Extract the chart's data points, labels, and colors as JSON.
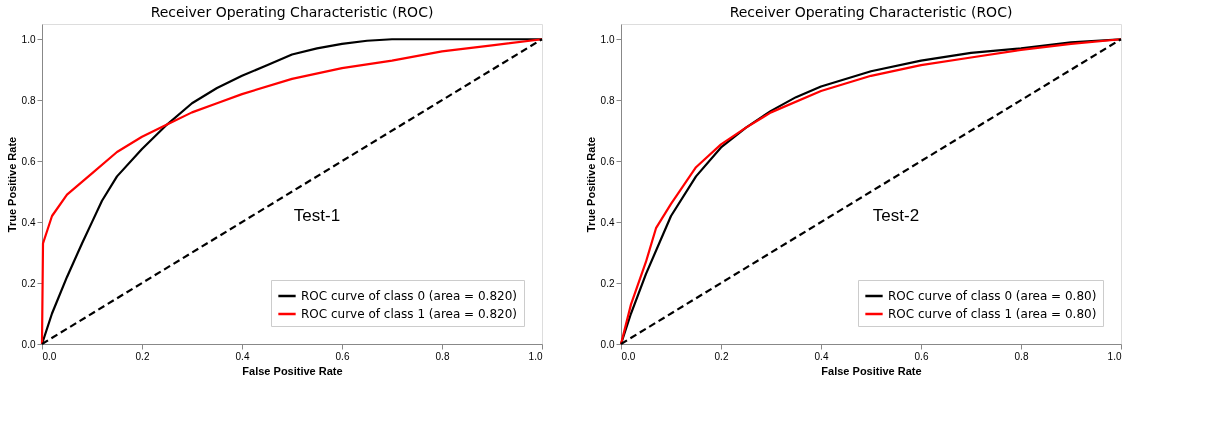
{
  "chart_data": [
    {
      "type": "line",
      "title": "Receiver Operating Characteristic (ROC)",
      "xlabel": "False Positive Rate",
      "ylabel": "True Positive Rate",
      "annotations": [
        "Test-1"
      ],
      "legend": "bottom right",
      "grid": false,
      "xlim": [
        0,
        1
      ],
      "ylim": [
        0,
        1.05
      ],
      "xticks": [
        {
          "value": 0,
          "label": "0.0"
        },
        {
          "value": 0.2,
          "label": "0.2"
        },
        {
          "value": 0.4,
          "label": "0.4"
        },
        {
          "value": 0.6,
          "label": "0.6"
        },
        {
          "value": 0.8,
          "label": "0.8"
        },
        {
          "value": 1,
          "label": "1.0"
        }
      ],
      "yticks": [
        {
          "value": 0,
          "label": "0.0"
        },
        {
          "value": 0.2,
          "label": "0.2"
        },
        {
          "value": 0.4,
          "label": "0.4"
        },
        {
          "value": 0.6,
          "label": "0.6"
        },
        {
          "value": 0.8,
          "label": "0.8"
        },
        {
          "value": 1,
          "label": "1.0"
        }
      ],
      "series": [
        {
          "name": "ROC curve of class 0 (area = 0.820)",
          "color": "#000000",
          "line_style": "solid",
          "x": [
            0,
            0.02,
            0.05,
            0.08,
            0.1,
            0.12,
            0.15,
            0.2,
            0.25,
            0.3,
            0.35,
            0.4,
            0.45,
            0.5,
            0.55,
            0.6,
            0.65,
            0.7,
            1
          ],
          "values": [
            0,
            0.1,
            0.22,
            0.33,
            0.4,
            0.47,
            0.55,
            0.64,
            0.72,
            0.79,
            0.84,
            0.88,
            0.915,
            0.95,
            0.97,
            0.985,
            0.995,
            1,
            1
          ]
        },
        {
          "name": "ROC curve of class 1 (area = 0.820)",
          "color": "#ff0000",
          "line_style": "solid",
          "x": [
            0,
            0.002,
            0.01,
            0.02,
            0.05,
            0.1,
            0.15,
            0.2,
            0.25,
            0.3,
            0.35,
            0.4,
            0.5,
            0.6,
            0.7,
            0.8,
            0.9,
            1
          ],
          "values": [
            0,
            0.33,
            0.37,
            0.42,
            0.49,
            0.56,
            0.63,
            0.68,
            0.72,
            0.76,
            0.79,
            0.82,
            0.87,
            0.905,
            0.93,
            0.96,
            0.98,
            1
          ]
        },
        {
          "color": "#000000",
          "line_style": "dashed",
          "x": [
            0,
            1
          ],
          "values": [
            0,
            1
          ]
        }
      ]
    },
    {
      "type": "line",
      "title": "Receiver Operating Characteristic (ROC)",
      "xlabel": "False Positive Rate",
      "ylabel": "True Positive Rate",
      "annotations": [
        "Test-2"
      ],
      "legend": "bottom right",
      "grid": false,
      "xlim": [
        0,
        1
      ],
      "ylim": [
        0,
        1.05
      ],
      "xticks": [
        {
          "value": 0,
          "label": "0.0"
        },
        {
          "value": 0.2,
          "label": "0.2"
        },
        {
          "value": 0.4,
          "label": "0.4"
        },
        {
          "value": 0.6,
          "label": "0.6"
        },
        {
          "value": 0.8,
          "label": "0.8"
        },
        {
          "value": 1,
          "label": "1.0"
        }
      ],
      "yticks": [
        {
          "value": 0,
          "label": "0.0"
        },
        {
          "value": 0.2,
          "label": "0.2"
        },
        {
          "value": 0.4,
          "label": "0.4"
        },
        {
          "value": 0.6,
          "label": "0.6"
        },
        {
          "value": 0.8,
          "label": "0.8"
        },
        {
          "value": 1,
          "label": "1.0"
        }
      ],
      "series": [
        {
          "name": "ROC curve of class 0 (area = 0.80)",
          "color": "#000000",
          "line_style": "solid",
          "x": [
            0,
            0.02,
            0.05,
            0.1,
            0.15,
            0.2,
            0.25,
            0.3,
            0.35,
            0.4,
            0.5,
            0.6,
            0.7,
            0.8,
            0.9,
            1
          ],
          "values": [
            0,
            0.1,
            0.23,
            0.42,
            0.55,
            0.645,
            0.71,
            0.765,
            0.81,
            0.845,
            0.895,
            0.93,
            0.955,
            0.97,
            0.99,
            1
          ]
        },
        {
          "name": "ROC curve of class 1 (area = 0.80)",
          "color": "#ff0000",
          "line_style": "solid",
          "x": [
            0,
            0.02,
            0.05,
            0.07,
            0.1,
            0.15,
            0.2,
            0.25,
            0.3,
            0.4,
            0.5,
            0.6,
            0.7,
            0.8,
            0.9,
            1
          ],
          "values": [
            0,
            0.13,
            0.27,
            0.38,
            0.46,
            0.58,
            0.655,
            0.71,
            0.76,
            0.83,
            0.88,
            0.915,
            0.94,
            0.965,
            0.985,
            1
          ]
        },
        {
          "color": "#000000",
          "line_style": "dashed",
          "x": [
            0,
            1
          ],
          "values": [
            0,
            1
          ]
        }
      ]
    }
  ]
}
